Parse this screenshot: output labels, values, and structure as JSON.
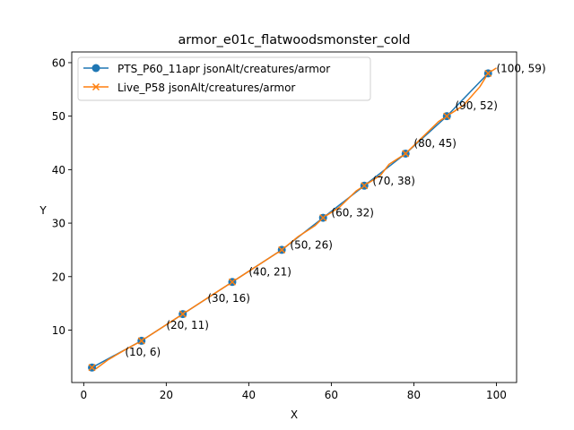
{
  "chart_data": {
    "type": "line",
    "title": "armor_e01c_flatwoodsmonster_cold",
    "xlabel": "X",
    "ylabel": "Y",
    "xlim": [
      -2.9,
      104.9
    ],
    "ylim": [
      0.2,
      62.0
    ],
    "xticks": [
      0,
      20,
      40,
      60,
      80,
      100
    ],
    "yticks": [
      10,
      20,
      30,
      40,
      50,
      60
    ],
    "grid": false,
    "legend_position": "upper-left",
    "series": [
      {
        "name": "PTS_P60_11apr jsonAlt/creatures/armor",
        "color": "#1f77b4",
        "marker": "circle",
        "x": [
          2,
          14,
          24,
          36,
          48,
          58,
          68,
          78,
          88,
          98
        ],
        "y": [
          3,
          8,
          13,
          19,
          25,
          31,
          37,
          43,
          50,
          58
        ]
      },
      {
        "name": "Live_P58 jsonAlt/creatures/armor",
        "color": "#ff7f0e",
        "marker": "x",
        "x": [
          2,
          3,
          6,
          10,
          14,
          18,
          22,
          24,
          28,
          32,
          36,
          40,
          44,
          48,
          52,
          56,
          58,
          62,
          66,
          68,
          72,
          74,
          78,
          82,
          86,
          88,
          92,
          96,
          98,
          100
        ],
        "y": [
          3,
          2.8,
          4.5,
          6.3,
          8,
          10,
          12,
          13,
          15,
          17,
          19,
          21,
          23,
          25,
          27.5,
          29.5,
          31,
          33,
          36,
          37,
          39,
          41,
          43,
          46,
          49,
          50,
          52,
          55.5,
          58,
          59
        ]
      }
    ],
    "annotations": [
      {
        "label": "(10, 6)",
        "x": 10,
        "y": 6
      },
      {
        "label": "(20, 11)",
        "x": 20,
        "y": 11
      },
      {
        "label": "(30, 16)",
        "x": 30,
        "y": 16
      },
      {
        "label": "(40, 21)",
        "x": 40,
        "y": 21
      },
      {
        "label": "(50, 26)",
        "x": 50,
        "y": 26
      },
      {
        "label": "(60, 32)",
        "x": 60,
        "y": 32
      },
      {
        "label": "(70, 38)",
        "x": 70,
        "y": 38
      },
      {
        "label": "(80, 45)",
        "x": 80,
        "y": 45
      },
      {
        "label": "(90, 52)",
        "x": 90,
        "y": 52
      },
      {
        "label": "(100, 59)",
        "x": 100,
        "y": 59
      }
    ]
  }
}
